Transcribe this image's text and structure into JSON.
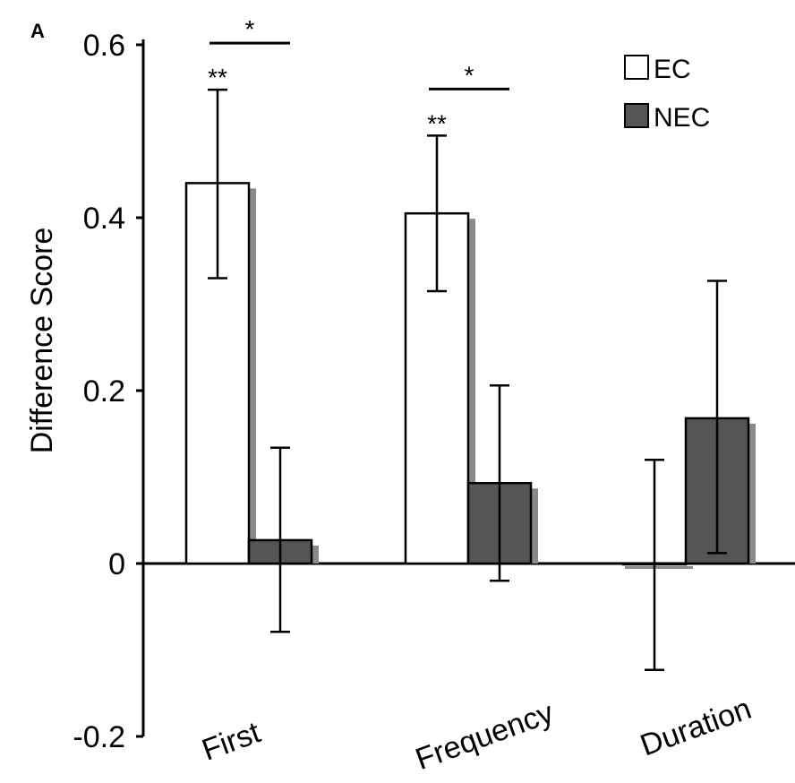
{
  "panel_label": "A",
  "chart_data": {
    "type": "bar",
    "title": "",
    "xlabel": "",
    "ylabel": "Difference Score",
    "categories": [
      "First",
      "Frequency",
      "Duration"
    ],
    "ylim": [
      -0.2,
      0.6
    ],
    "yticks": [
      -0.2,
      0,
      0.2,
      0.4,
      0.6
    ],
    "ytick_labels": [
      "-0.2",
      "0",
      "0.2",
      "0.4",
      "0.6"
    ],
    "series": [
      {
        "name": "EC",
        "color": "#ffffff",
        "edge": "#000000",
        "values": [
          0.44,
          0.405,
          0.0
        ],
        "err_low": [
          0.33,
          0.315,
          -0.123
        ],
        "err_high": [
          0.548,
          0.495,
          0.12
        ]
      },
      {
        "name": "NEC",
        "color": "#555555",
        "edge": "#000000",
        "values": [
          0.027,
          0.093,
          0.168
        ],
        "err_low": [
          -0.079,
          -0.02,
          0.012
        ],
        "err_high": [
          0.134,
          0.206,
          0.327
        ]
      }
    ],
    "annotations": [
      {
        "type": "text",
        "text": "**",
        "category": "First",
        "series": "EC"
      },
      {
        "type": "text",
        "text": "**",
        "category": "Frequency",
        "series": "EC"
      },
      {
        "type": "bracket",
        "text": "*",
        "category": "First"
      },
      {
        "type": "bracket",
        "text": "*",
        "category": "Frequency"
      }
    ],
    "legend_position": "top-right",
    "grid": false
  }
}
